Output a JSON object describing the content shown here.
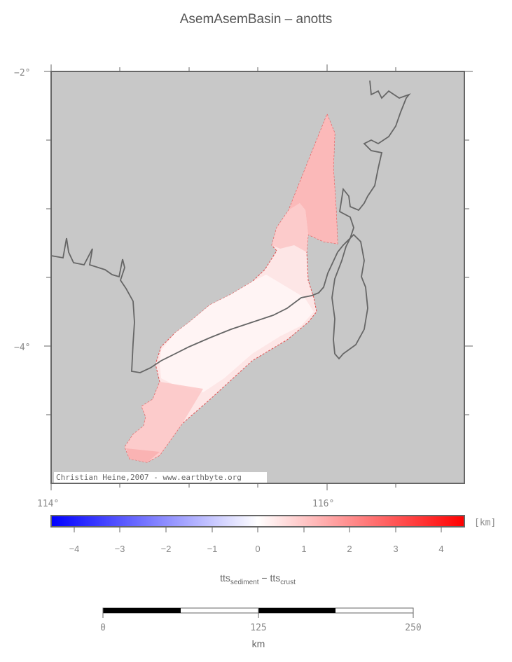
{
  "title": "AsemAsemBasin – anotts",
  "map": {
    "lat_labels": [
      "−2°",
      "−4°"
    ],
    "lon_labels": [
      "114°",
      "116°"
    ],
    "credit": "Christian Heine,2007 - www.earthbyte.org",
    "colors": {
      "background": "#c8c8c8",
      "coastline": "#666666",
      "outline": "#e05050"
    }
  },
  "colorbar": {
    "unit": "[km]",
    "tick_labels": [
      "−4",
      "−3",
      "−2",
      "−1",
      "0",
      "1",
      "2",
      "3",
      "4"
    ],
    "range": [
      -4.5,
      4.5
    ],
    "colors": {
      "min": "#0000ff",
      "mid": "#ffffff",
      "max": "#ff0000"
    },
    "label_main_a": "tts",
    "label_sub_a": "sediment",
    "label_sep": " − ",
    "label_main_b": "tts",
    "label_sub_b": "crust"
  },
  "scalebar": {
    "tick_labels": [
      "0",
      "125",
      "250"
    ],
    "unit": "km"
  }
}
